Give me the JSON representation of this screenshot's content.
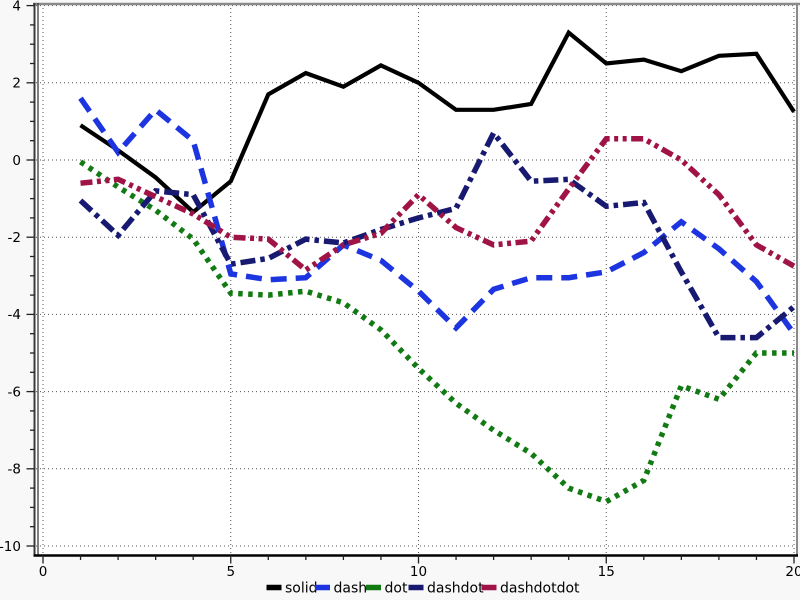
{
  "chart_data": {
    "type": "line",
    "title": "",
    "xlabel": "",
    "ylabel": "",
    "x": [
      1,
      2,
      3,
      4,
      5,
      6,
      7,
      8,
      9,
      10,
      11,
      12,
      13,
      14,
      15,
      16,
      17,
      18,
      19,
      20
    ],
    "series": [
      {
        "name": "solid",
        "label": "solid",
        "color": "#000000",
        "line_style": "solid",
        "values": [
          0.9,
          0.25,
          -0.45,
          -1.35,
          -0.55,
          1.7,
          2.25,
          1.9,
          2.45,
          2.0,
          1.3,
          1.3,
          1.45,
          3.3,
          2.5,
          2.6,
          2.3,
          2.7,
          2.75,
          1.25
        ]
      },
      {
        "name": "dash",
        "label": "dash",
        "color": "#1c35e0",
        "line_style": "dash",
        "values": [
          1.6,
          0.2,
          1.3,
          0.5,
          -2.95,
          -3.1,
          -3.05,
          -2.2,
          -2.6,
          -3.4,
          -4.35,
          -3.35,
          -3.05,
          -3.05,
          -2.9,
          -2.4,
          -1.6,
          -2.3,
          -3.15,
          -4.5
        ]
      },
      {
        "name": "dot",
        "label": "dot",
        "color": "#127a12",
        "line_style": "dot",
        "values": [
          -0.05,
          -0.7,
          -1.3,
          -2.05,
          -3.45,
          -3.5,
          -3.4,
          -3.7,
          -4.4,
          -5.4,
          -6.3,
          -7.0,
          -7.6,
          -8.5,
          -8.85,
          -8.3,
          -5.85,
          -6.2,
          -5.0,
          -5.0
        ]
      },
      {
        "name": "dashdot",
        "label": "dashdot",
        "color": "#171a70",
        "line_style": "dashdot",
        "values": [
          -1.05,
          -1.95,
          -0.8,
          -0.9,
          -2.7,
          -2.55,
          -2.05,
          -2.15,
          -1.8,
          -1.5,
          -1.25,
          0.7,
          -0.55,
          -0.5,
          -1.2,
          -1.1,
          -2.9,
          -4.6,
          -4.6,
          -3.8
        ]
      },
      {
        "name": "dashdotdot",
        "label": "dashdotdot",
        "color": "#a01346",
        "line_style": "dashdotdot",
        "values": [
          -0.6,
          -0.5,
          -0.95,
          -1.4,
          -2.0,
          -2.05,
          -2.85,
          -2.2,
          -1.9,
          -0.9,
          -1.75,
          -2.2,
          -2.1,
          -0.75,
          0.55,
          0.55,
          0.0,
          -0.9,
          -2.2,
          -2.75
        ]
      }
    ],
    "x_ticks": [
      0,
      5,
      10,
      15,
      20
    ],
    "x_tick_labels": [
      "0",
      "5",
      "10",
      "15",
      "20"
    ],
    "y_ticks": [
      4,
      2,
      0,
      -2,
      -4,
      -6,
      -8,
      -10
    ],
    "y_tick_labels": [
      "4",
      "2",
      "0",
      "-2",
      "-4",
      "-6",
      "-8",
      "-10"
    ],
    "x_minor_step": 1,
    "y_minor_step": 0.5,
    "xlim": [
      -0.2,
      20.1
    ],
    "ylim": [
      -10.26,
      4.05
    ],
    "grid": "dotted",
    "legend_position": "bottom-center",
    "legend_labels": [
      "solid",
      "dash",
      "dot",
      "dashdot",
      "dashdotdot"
    ]
  },
  "style_colors": {
    "plot_background": "#ffffff",
    "outer_background": "#f8f8f8",
    "grid_color": "#555555",
    "axis_color": "#3b3b3b",
    "frame_color": "#8a8a8a",
    "tick_color": "#222222",
    "label_color": "#000000"
  }
}
